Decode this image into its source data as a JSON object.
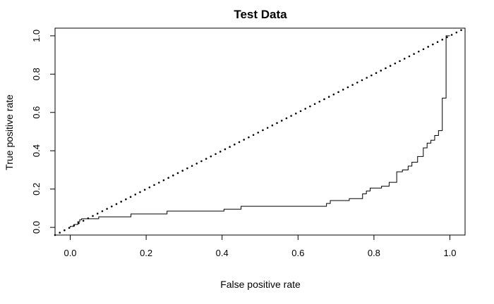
{
  "chart_data": {
    "type": "line",
    "title": "Test Data",
    "xlabel": "False positive rate",
    "ylabel": "True positive rate",
    "xlim": [
      -0.04,
      1.04
    ],
    "ylim": [
      -0.04,
      1.04
    ],
    "x_ticks": [
      0.0,
      0.2,
      0.4,
      0.6,
      0.8,
      1.0
    ],
    "x_tick_labels": [
      "0.0",
      "0.2",
      "0.4",
      "0.6",
      "0.8",
      "1.0"
    ],
    "y_ticks": [
      0.0,
      0.2,
      0.4,
      0.6,
      0.8,
      1.0
    ],
    "y_tick_labels": [
      "0.0",
      "0.2",
      "0.4",
      "0.6",
      "0.8",
      "1.0"
    ],
    "grid": false,
    "legend": "none",
    "series": [
      {
        "style": "solid-step",
        "color": "#000000",
        "x": [
          0.0,
          0.0,
          0.01,
          0.01,
          0.02,
          0.02,
          0.025,
          0.025,
          0.03,
          0.03,
          0.075,
          0.075,
          0.16,
          0.16,
          0.255,
          0.255,
          0.405,
          0.405,
          0.45,
          0.45,
          0.675,
          0.675,
          0.685,
          0.685,
          0.735,
          0.735,
          0.77,
          0.77,
          0.78,
          0.78,
          0.79,
          0.79,
          0.82,
          0.82,
          0.84,
          0.84,
          0.86,
          0.86,
          0.875,
          0.875,
          0.89,
          0.89,
          0.9,
          0.9,
          0.915,
          0.915,
          0.93,
          0.93,
          0.94,
          0.94,
          0.95,
          0.95,
          0.96,
          0.96,
          0.97,
          0.97,
          0.98,
          0.98,
          0.99,
          0.99,
          1.0,
          1.0
        ],
        "y": [
          0.0,
          0.005,
          0.005,
          0.015,
          0.015,
          0.03,
          0.03,
          0.04,
          0.04,
          0.045,
          0.045,
          0.055,
          0.055,
          0.07,
          0.07,
          0.085,
          0.085,
          0.095,
          0.095,
          0.11,
          0.11,
          0.125,
          0.125,
          0.14,
          0.14,
          0.15,
          0.15,
          0.175,
          0.175,
          0.19,
          0.19,
          0.205,
          0.205,
          0.215,
          0.215,
          0.235,
          0.235,
          0.29,
          0.29,
          0.3,
          0.3,
          0.32,
          0.32,
          0.34,
          0.34,
          0.37,
          0.37,
          0.415,
          0.415,
          0.44,
          0.44,
          0.455,
          0.455,
          0.48,
          0.48,
          0.505,
          0.505,
          0.675,
          0.675,
          1.0,
          1.0,
          1.0
        ]
      },
      {
        "style": "dotted",
        "color": "#000000",
        "x": [
          -0.04,
          1.04
        ],
        "y": [
          -0.04,
          1.04
        ]
      }
    ]
  }
}
